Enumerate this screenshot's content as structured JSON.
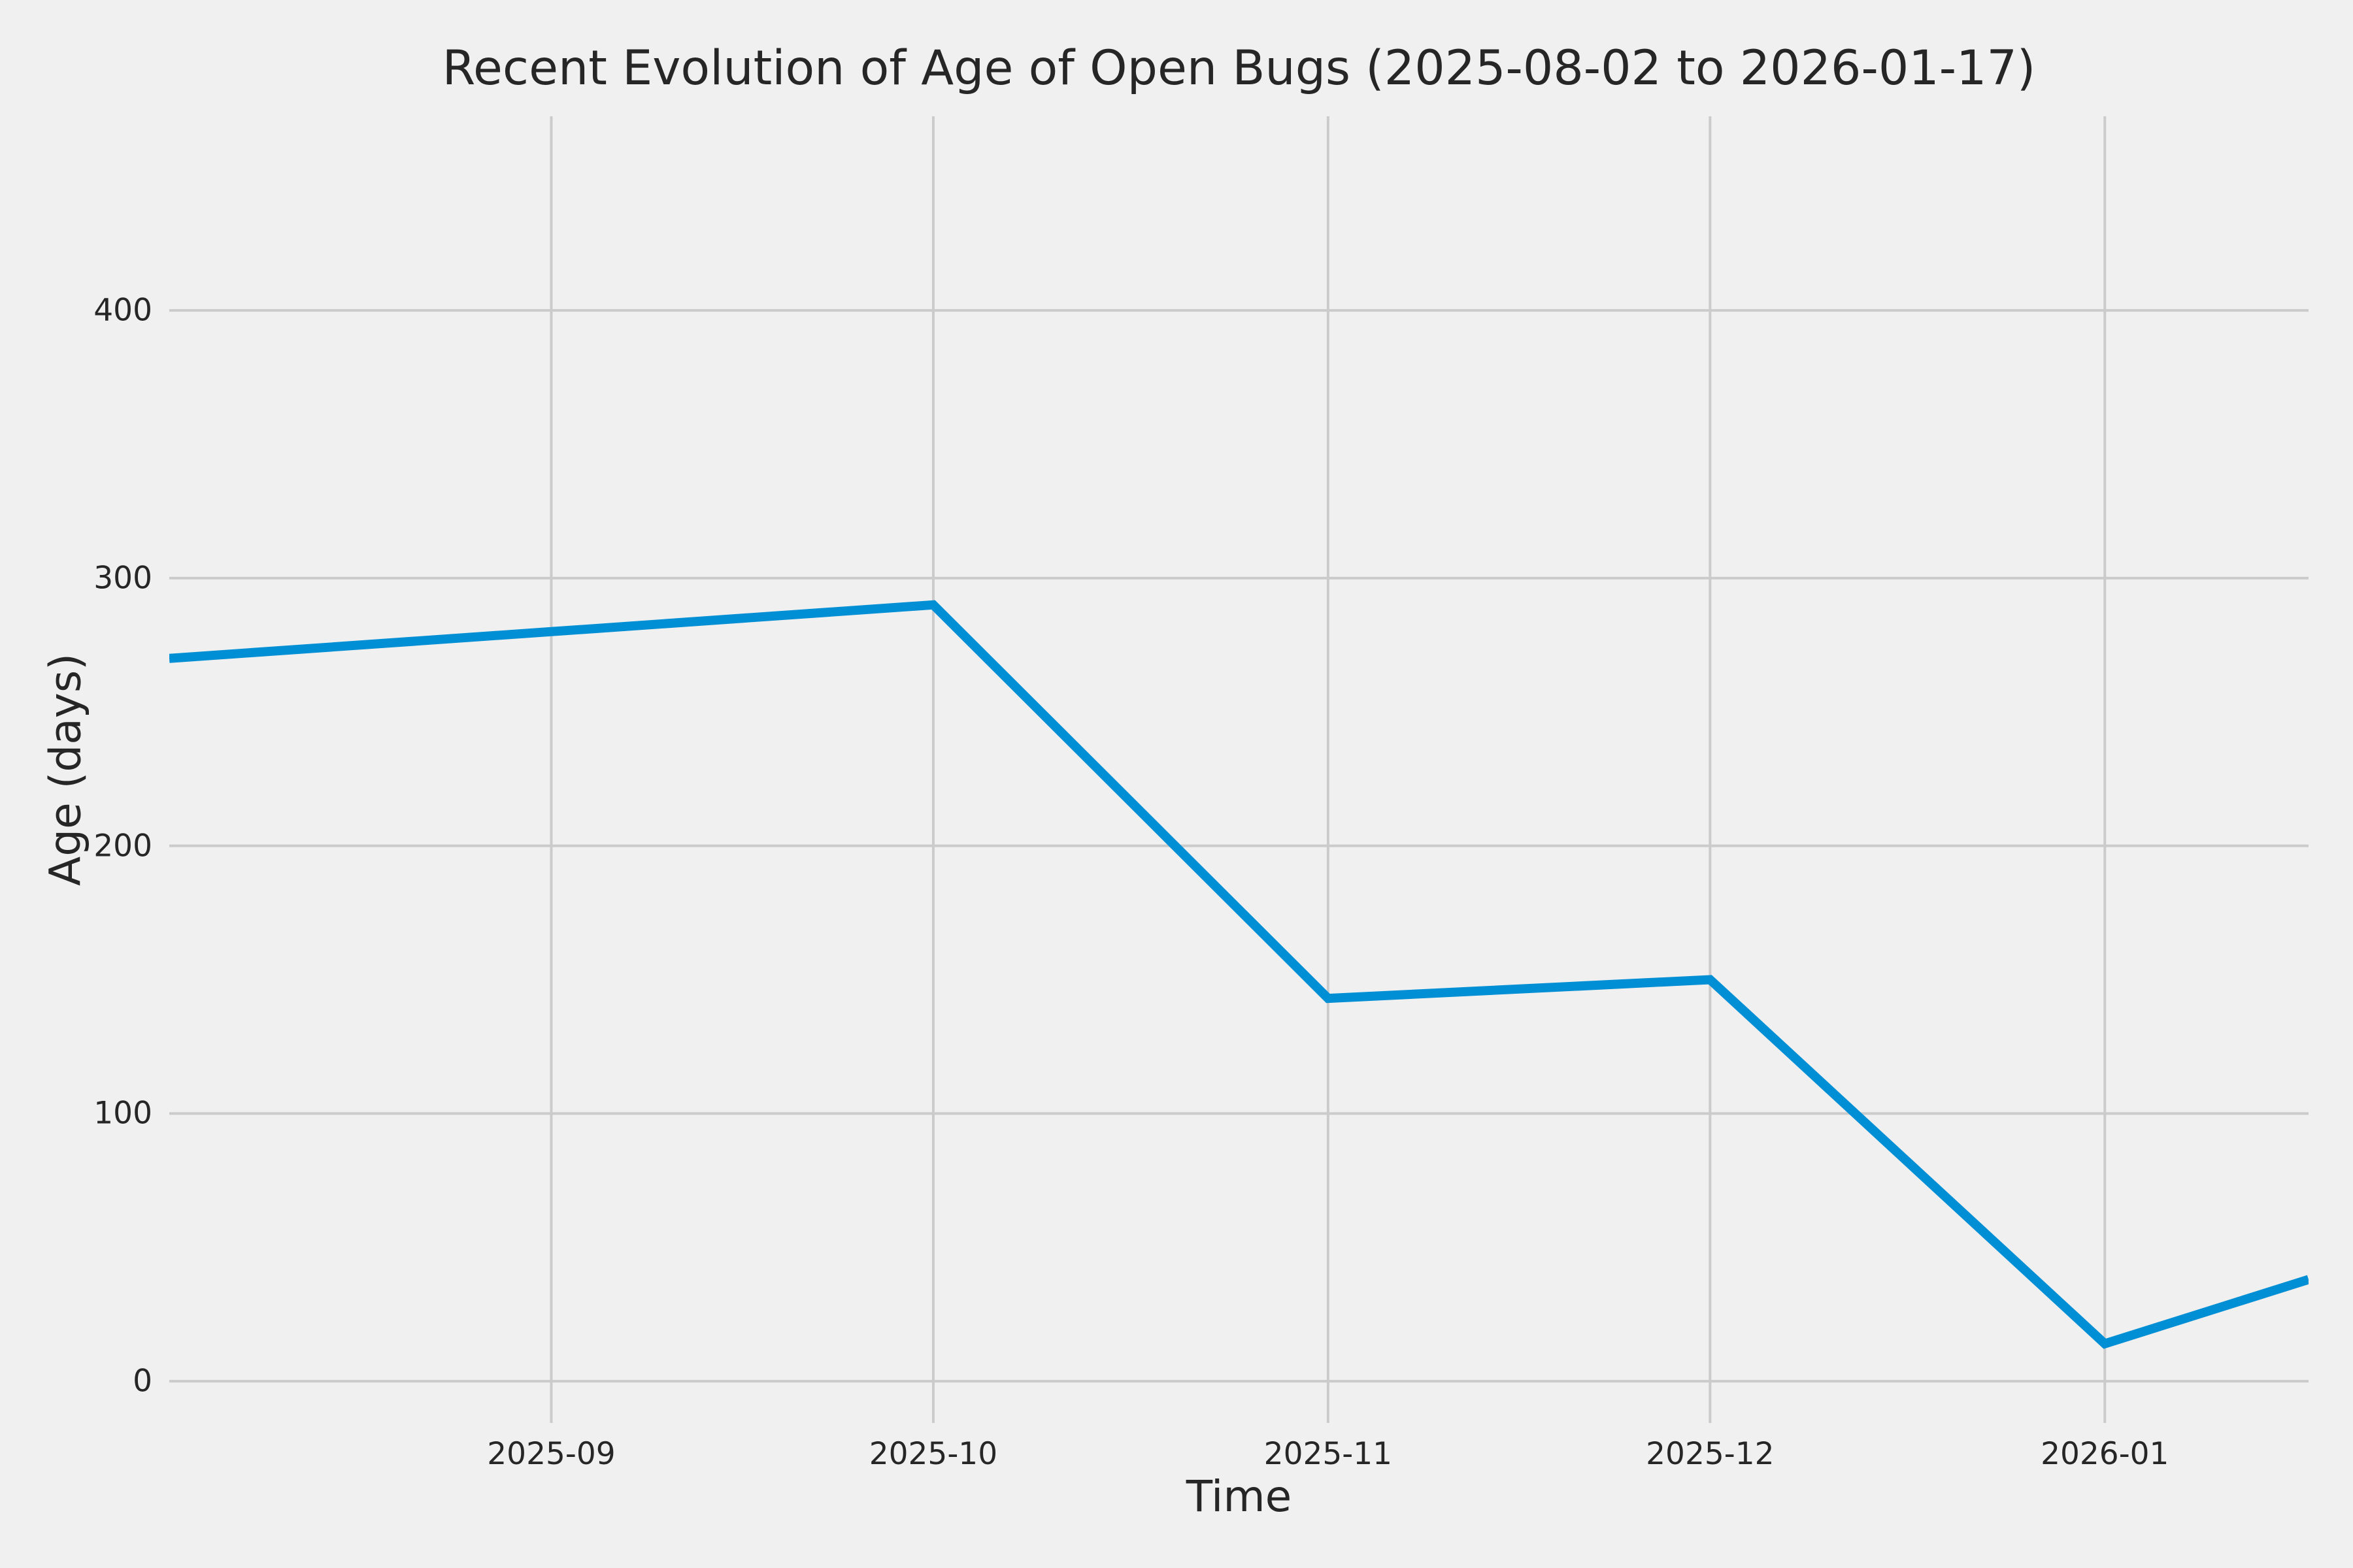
{
  "title": "Recent Evolution of Age of Open Bugs (2025-08-02 to 2026-01-17)",
  "colors": {
    "background": "#f0f0f0",
    "grid": "#cbcbcb",
    "line": "#008fd5",
    "text": "#262626"
  },
  "chart_data": {
    "type": "line",
    "title": "Recent Evolution of Age of Open Bugs (2025-08-02 to 2026-01-17)",
    "xlabel": "Time",
    "ylabel": "Age (days)",
    "grid": true,
    "legend": false,
    "x_range_dates": [
      "2025-08-02",
      "2026-01-17"
    ],
    "x_range_days": [
      0,
      168
    ],
    "ylim": [
      -15.6,
      472.5
    ],
    "y_ticks": [
      0,
      100,
      200,
      300,
      400
    ],
    "x_ticks": [
      {
        "label": "2025-09",
        "day": 30
      },
      {
        "label": "2025-10",
        "day": 60
      },
      {
        "label": "2025-11",
        "day": 91
      },
      {
        "label": "2025-12",
        "day": 121
      },
      {
        "label": "2026-01",
        "day": 152
      }
    ],
    "series": [
      {
        "name": "age-of-open-bugs",
        "x_dates": [
          "2025-08-02",
          "2025-09-01",
          "2025-10-01",
          "2025-11-01",
          "2025-12-01",
          "2026-01-01",
          "2026-01-17"
        ],
        "x_days": [
          0,
          30,
          60,
          91,
          121,
          152,
          168
        ],
        "values": [
          270,
          280,
          290,
          143,
          150,
          14,
          38
        ],
        "line_width": 14
      }
    ]
  }
}
